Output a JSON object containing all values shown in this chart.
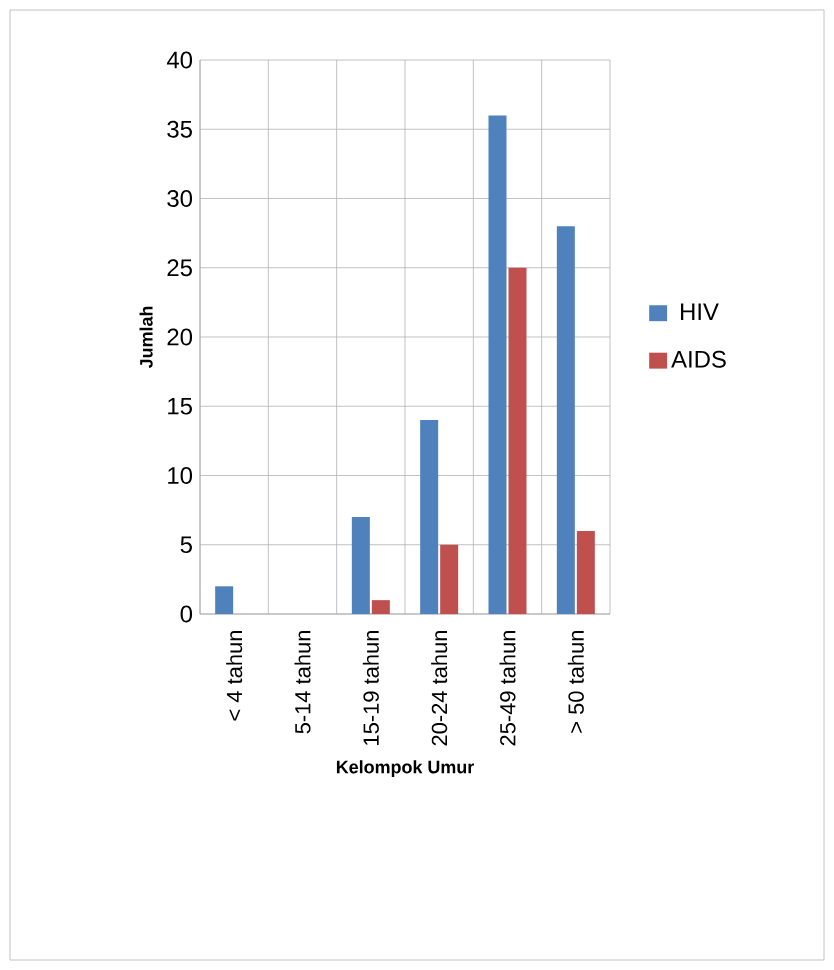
{
  "chart_data": {
    "type": "bar",
    "xlabel": "Kelompok Umur",
    "ylabel": "Jumlah",
    "categories": [
      "< 4 tahun",
      "5-14 tahun",
      "15-19 tahun",
      "20-24 tahun",
      "25-49 tahun",
      "> 50 tahun"
    ],
    "series": [
      {
        "name": "HIV",
        "color": "#4f81bd",
        "values": [
          2,
          0,
          7,
          14,
          36,
          28
        ]
      },
      {
        "name": "AIDS",
        "color": "#c0504d",
        "values": [
          0,
          0,
          1,
          5,
          25,
          6
        ]
      }
    ],
    "ylim": [
      0,
      40
    ],
    "yticks": [
      0,
      5,
      10,
      15,
      20,
      25,
      30,
      35,
      40
    ],
    "grid": true,
    "legend": "right"
  }
}
